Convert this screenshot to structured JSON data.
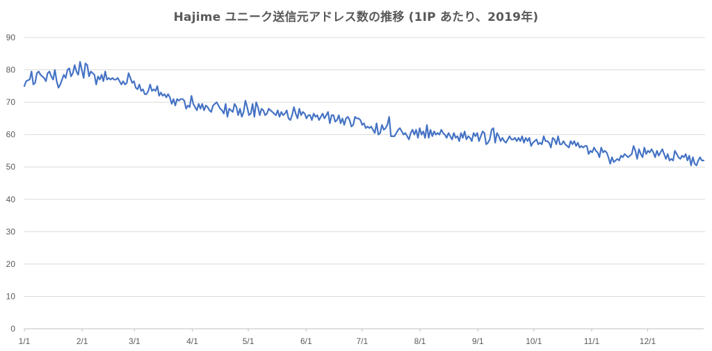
{
  "chart_data": {
    "type": "line",
    "title": "Hajime ユニーク送信元アドレス数の推移 (1IP あたり、2019年)",
    "xlabel": "",
    "ylabel": "",
    "ylim": [
      0,
      90
    ],
    "yticks": [
      "0",
      "10",
      "20",
      "30",
      "40",
      "50",
      "60",
      "70",
      "80",
      "90"
    ],
    "xticks": [
      "1/1",
      "2/1",
      "3/1",
      "4/1",
      "5/1",
      "6/1",
      "7/1",
      "8/1",
      "9/1",
      "10/1",
      "11/1",
      "12/1"
    ],
    "grid": true,
    "legend": "none",
    "color": "#4472c4",
    "series": [
      {
        "x_start": "2019-01-01",
        "x_end": "2019-12-31",
        "values": [
          75.0,
          76.5,
          76.8,
          77.0,
          79.5,
          75.5,
          76.0,
          79.0,
          79.5,
          78.5,
          78.0,
          77.5,
          76.5,
          79.0,
          79.5,
          78.0,
          77.0,
          80.0,
          76.5,
          74.5,
          75.5,
          77.0,
          78.5,
          77.5,
          80.0,
          80.5,
          78.0,
          79.0,
          81.5,
          79.5,
          78.5,
          82.5,
          80.0,
          77.5,
          82.0,
          81.5,
          78.0,
          79.5,
          79.0,
          78.5,
          75.5,
          78.0,
          77.0,
          78.5,
          76.5,
          79.5,
          77.0,
          77.5,
          77.0,
          77.5,
          77.0,
          77.0,
          77.5,
          76.5,
          75.5,
          76.5,
          75.5,
          76.0,
          79.0,
          77.5,
          76.0,
          76.5,
          74.5,
          74.0,
          75.5,
          73.5,
          74.0,
          72.5,
          72.5,
          73.5,
          75.5,
          73.5,
          74.0,
          73.5,
          75.0,
          72.0,
          73.0,
          72.0,
          72.5,
          71.5,
          72.5,
          71.5,
          69.5,
          71.0,
          69.0,
          71.0,
          70.5,
          71.0,
          71.0,
          70.5,
          68.0,
          69.0,
          68.5,
          72.0,
          69.5,
          68.5,
          67.5,
          69.5,
          68.0,
          69.5,
          67.5,
          69.0,
          68.5,
          67.5,
          67.0,
          69.0,
          69.5,
          70.0,
          69.0,
          68.0,
          67.5,
          66.5,
          69.5,
          65.5,
          68.0,
          67.5,
          67.0,
          69.5,
          68.5,
          66.0,
          68.0,
          65.5,
          67.0,
          70.5,
          68.5,
          66.0,
          66.5,
          69.5,
          65.5,
          70.0,
          68.5,
          66.0,
          68.0,
          67.5,
          66.0,
          66.5,
          68.0,
          67.5,
          67.0,
          66.5,
          66.0,
          67.5,
          65.5,
          67.0,
          66.0,
          66.5,
          67.5,
          65.0,
          64.5,
          66.0,
          68.5,
          66.5,
          65.0,
          68.0,
          66.0,
          67.0,
          66.5,
          65.0,
          66.0,
          66.0,
          64.5,
          66.5,
          65.5,
          66.0,
          64.5,
          65.5,
          66.5,
          65.0,
          66.0,
          67.0,
          63.5,
          66.0,
          66.0,
          64.0,
          64.5,
          66.0,
          63.5,
          65.0,
          63.0,
          65.0,
          65.5,
          64.5,
          62.5,
          63.0,
          65.5,
          65.0,
          65.0,
          64.5,
          63.0,
          63.5,
          62.0,
          62.5,
          62.0,
          62.5,
          61.5,
          60.5,
          63.5,
          60.0,
          60.5,
          63.0,
          61.5,
          62.0,
          63.0,
          65.5,
          59.5,
          59.5,
          59.5,
          60.5,
          61.5,
          62.0,
          61.0,
          60.0,
          60.5,
          59.5,
          58.5,
          60.5,
          61.5,
          60.0,
          61.5,
          59.0,
          62.0,
          60.0,
          61.0,
          59.0,
          63.0,
          59.0,
          61.5,
          59.5,
          61.0,
          60.0,
          60.5,
          60.0,
          61.5,
          60.5,
          60.0,
          59.0,
          60.5,
          59.5,
          58.5,
          60.5,
          59.0,
          59.5,
          58.0,
          60.5,
          59.0,
          61.0,
          58.5,
          59.5,
          59.0,
          58.0,
          60.5,
          59.5,
          60.5,
          58.0,
          59.5,
          61.0,
          60.5,
          57.0,
          57.5,
          58.5,
          61.5,
          62.0,
          57.5,
          60.5,
          59.5,
          58.0,
          59.0,
          58.0,
          57.5,
          58.5,
          59.5,
          58.5,
          58.5,
          59.0,
          58.0,
          59.0,
          58.0,
          59.5,
          57.5,
          59.0,
          58.0,
          59.0,
          56.5,
          57.5,
          58.0,
          58.5,
          57.0,
          57.5,
          57.0,
          59.5,
          58.0,
          58.0,
          57.5,
          56.0,
          59.0,
          58.5,
          57.0,
          59.5,
          57.0,
          57.0,
          58.0,
          57.0,
          56.5,
          56.0,
          58.0,
          57.0,
          58.0,
          56.5,
          57.5,
          56.0,
          56.5,
          56.0,
          56.5,
          56.5,
          54.0,
          55.0,
          54.5,
          56.0,
          55.0,
          54.5,
          53.0,
          56.0,
          54.5,
          55.0,
          54.5,
          53.0,
          51.0,
          53.0,
          51.5,
          52.0,
          52.5,
          52.0,
          53.5,
          53.0,
          54.0,
          53.5,
          53.0,
          53.5,
          54.0,
          56.5,
          55.0,
          52.5,
          55.5,
          54.0,
          53.0,
          56.0,
          54.0,
          55.0,
          54.5,
          55.5,
          54.5,
          53.0,
          55.0,
          53.5,
          54.5,
          55.5,
          54.0,
          52.5,
          54.0,
          52.0,
          52.5,
          52.0,
          55.0,
          54.0,
          53.0,
          52.5,
          53.5,
          53.0,
          54.0,
          52.0,
          53.5,
          50.5,
          53.0,
          51.0,
          50.5,
          52.0,
          53.0,
          52.0,
          52.0
        ]
      }
    ]
  }
}
